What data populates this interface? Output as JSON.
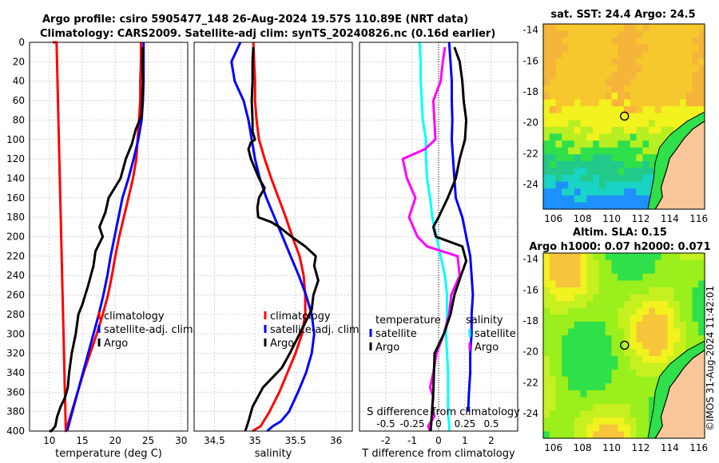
{
  "titles": {
    "line1": "Argo profile: csiro 5905477_148 26-Aug-2024 19.57S 110.89E (NRT data)",
    "line2": "Climatology: CARS2009. Satellite-adj clim: synTS_20240826.nc (0.16d earlier)"
  },
  "watermark": "©IMOS 31-Aug-2024 11:42:01",
  "colors": {
    "climatology": "#ff0000",
    "satellite": "#0000ff",
    "argo": "#000000",
    "salinity_diff": "#ff00ff",
    "sat_salinity_diff": "#00ffff",
    "grid": "#c8c8c8",
    "land": "#fac79a",
    "ocean_blue": "#1e90ff",
    "ocean_cyan": "#19d3c5",
    "ocean_green": "#2fe04a",
    "ocean_yellow": "#f2f21e",
    "ocean_orange": "#f5b43a",
    "sla_bright": "#9aef1c"
  },
  "chart_data": [
    {
      "id": "temperature",
      "type": "line",
      "xlabel": "temperature (deg C)",
      "ylabel": "",
      "xlim": [
        7,
        31
      ],
      "ylim": [
        400,
        0
      ],
      "xticks": [
        10,
        15,
        20,
        25,
        30
      ],
      "xticklabels": [
        "10",
        "15",
        "20",
        "25",
        "30"
      ],
      "yticks": [
        0,
        20,
        40,
        60,
        80,
        100,
        120,
        140,
        160,
        180,
        200,
        220,
        240,
        260,
        280,
        300,
        320,
        340,
        360,
        380,
        400
      ],
      "legend": [
        "climatology",
        "satellite-adj. clim",
        "Argo"
      ],
      "legend_position": "bottom-right",
      "series": [
        {
          "name": "climatology",
          "color": "climatology",
          "x": [
            23.9,
            23.9,
            23.8,
            23.8,
            23.6,
            23.4,
            23.2,
            22.7,
            22.0,
            21.3,
            20.6,
            20.0,
            19.5,
            18.9,
            18.1,
            17.2,
            16.2,
            15.2,
            14.3,
            13.4,
            12.5,
            11.7,
            11.1,
            10.5
          ],
          "y": [
            0,
            20,
            40,
            60,
            80,
            100,
            120,
            140,
            160,
            180,
            200,
            220,
            240,
            260,
            280,
            300,
            320,
            340,
            360,
            380,
            400,
            0,
            0,
            0
          ]
        },
        {
          "name": "satellite-adj. clim",
          "color": "satellite",
          "x": [
            24.3,
            24.3,
            24.3,
            24.2,
            24.0,
            23.5,
            22.8,
            22.0,
            21.1,
            20.5,
            19.9,
            19.3,
            18.8,
            18.2,
            17.5,
            16.7,
            15.9,
            15.1,
            14.3,
            13.5,
            12.7
          ],
          "y": [
            0,
            20,
            40,
            60,
            80,
            100,
            120,
            140,
            160,
            180,
            200,
            220,
            240,
            260,
            280,
            300,
            320,
            340,
            360,
            380,
            400
          ]
        },
        {
          "name": "Argo",
          "color": "argo",
          "x": [
            24.2,
            24.1,
            24.2,
            24.1,
            24.0,
            23.1,
            22.5,
            21.6,
            20.8,
            19.0,
            18.5,
            17.6,
            18.1,
            17.0,
            16.7,
            15.9,
            15.0,
            14.4,
            14.0,
            13.4,
            13.0,
            12.8,
            12.4,
            11.7,
            11.2,
            10.9,
            10.3,
            10.0
          ],
          "y": [
            5,
            20,
            40,
            60,
            75,
            90,
            105,
            120,
            140,
            160,
            175,
            190,
            200,
            215,
            230,
            250,
            270,
            280,
            300,
            320,
            340,
            355,
            365,
            375,
            385,
            395,
            400,
            400
          ]
        }
      ]
    },
    {
      "id": "salinity",
      "type": "line",
      "xlabel": "salinity",
      "ylabel": "",
      "xlim": [
        34.25,
        36.2
      ],
      "ylim": [
        400,
        0
      ],
      "xticks": [
        34.5,
        35,
        35.5,
        36
      ],
      "xticklabels": [
        "34.5",
        "35",
        "35.5",
        "36"
      ],
      "legend": [
        "climatology",
        "satellite-adj. clim",
        "Argo"
      ],
      "legend_position": "bottom-right",
      "series": [
        {
          "name": "climatology",
          "color": "climatology",
          "x": [
            34.98,
            34.99,
            35.0,
            35.0,
            35.02,
            35.05,
            35.12,
            35.2,
            35.29,
            35.38,
            35.46,
            35.55,
            35.6,
            35.62,
            35.62,
            35.58,
            35.5,
            35.4,
            35.3,
            35.18,
            35.07,
            34.97
          ],
          "y": [
            0,
            20,
            40,
            60,
            80,
            100,
            120,
            140,
            160,
            180,
            200,
            220,
            240,
            260,
            280,
            300,
            320,
            340,
            360,
            380,
            395,
            400
          ]
        },
        {
          "name": "satellite-adj. clim",
          "color": "satellite",
          "x": [
            34.82,
            34.71,
            34.75,
            34.86,
            34.92,
            34.96,
            35.0,
            35.06,
            35.14,
            35.24,
            35.34,
            35.44,
            35.54,
            35.63,
            35.7,
            35.73,
            35.7,
            35.63,
            35.53,
            35.42,
            35.32,
            35.22,
            35.15
          ],
          "y": [
            0,
            20,
            40,
            60,
            80,
            100,
            120,
            140,
            160,
            180,
            200,
            220,
            240,
            260,
            280,
            300,
            320,
            340,
            360,
            380,
            390,
            395,
            400
          ]
        },
        {
          "name": "Argo",
          "color": "argo",
          "x": [
            34.98,
            34.97,
            34.97,
            34.96,
            34.97,
            34.97,
            35.0,
            34.95,
            34.92,
            34.95,
            35.0,
            35.05,
            35.12,
            35.05,
            35.03,
            35.04,
            35.2,
            35.3,
            35.45,
            35.62,
            35.75,
            35.73,
            35.78,
            35.72,
            35.7,
            35.55,
            35.43,
            35.33,
            35.1,
            34.97,
            34.92,
            34.88
          ],
          "y": [
            5,
            20,
            40,
            60,
            80,
            92,
            100,
            103,
            110,
            120,
            130,
            140,
            150,
            160,
            170,
            180,
            185,
            190,
            200,
            210,
            220,
            230,
            245,
            260,
            275,
            300,
            320,
            335,
            355,
            375,
            390,
            400
          ]
        }
      ]
    },
    {
      "id": "difference",
      "type": "line",
      "xlabel": "T difference from climatology",
      "xlabel_secondary": "S difference from climatology",
      "xlim": [
        -3,
        3
      ],
      "ylim": [
        400,
        0
      ],
      "xticks": [
        -2,
        -1,
        0,
        1,
        2
      ],
      "xticklabels": [
        "-2",
        "-1",
        "0",
        "1",
        "2"
      ],
      "sticks": [
        -0.5,
        -0.25,
        0,
        0.25,
        0.5
      ],
      "sticklabels": [
        "-0.5",
        "-0.25",
        "0",
        "0.25",
        "0.5"
      ],
      "s_scale": 4,
      "legend_temperature_header": "temperature",
      "legend_salinity_header": "salinity",
      "legend_temperature": [
        "satellite",
        "Argo"
      ],
      "legend_salinity": [
        "satellite",
        "Argo"
      ],
      "series": [
        {
          "name": "S satellite",
          "color": "sat_salinity_diff",
          "scale": "salinity",
          "x": [
            -0.18,
            -0.17,
            -0.17,
            -0.16,
            -0.15,
            -0.12,
            -0.12,
            -0.11,
            -0.08,
            -0.06,
            -0.02,
            0.02,
            0.06,
            0.08,
            0.08,
            0.07,
            0.08,
            0.09,
            0.09,
            0.09,
            0.1,
            0.1
          ],
          "y": [
            0,
            20,
            40,
            60,
            80,
            100,
            120,
            140,
            160,
            180,
            200,
            220,
            240,
            260,
            280,
            300,
            320,
            340,
            360,
            380,
            395,
            400
          ]
        },
        {
          "name": "S Argo",
          "color": "salinity_diff",
          "scale": "salinity",
          "x": [
            0.06,
            0.04,
            0.02,
            -0.05,
            -0.04,
            -0.03,
            -0.13,
            -0.34,
            -0.3,
            -0.22,
            -0.28,
            -0.2,
            -0.11,
            0.18,
            0.2,
            0.12,
            0.1,
            0.05,
            -0.02,
            -0.05,
            -0.08,
            -0.05,
            -0.06,
            -0.04,
            -0.1,
            -0.08
          ],
          "y": [
            5,
            20,
            40,
            60,
            80,
            100,
            110,
            120,
            140,
            160,
            180,
            200,
            210,
            220,
            240,
            260,
            280,
            300,
            320,
            340,
            355,
            365,
            375,
            385,
            395,
            400
          ]
        },
        {
          "name": "T satellite",
          "color": "satellite",
          "scale": "temperature",
          "x": [
            0.4,
            0.45,
            0.5,
            0.5,
            0.52,
            0.5,
            0.55,
            0.6,
            0.65,
            0.9,
            1.05,
            1.2,
            1.25,
            1.3,
            1.25,
            1.25,
            1.2,
            1.2,
            1.15,
            1.12
          ],
          "y": [
            0,
            20,
            40,
            60,
            80,
            100,
            120,
            140,
            160,
            180,
            200,
            220,
            240,
            260,
            280,
            300,
            320,
            340,
            360,
            380
          ]
        },
        {
          "name": "T Argo",
          "color": "argo",
          "scale": "temperature",
          "x": [
            0.6,
            0.8,
            0.9,
            0.95,
            1.05,
            1.0,
            0.8,
            0.65,
            0.35,
            0.0,
            -0.2,
            -0.1,
            0.9,
            1.05,
            0.85,
            0.6,
            0.45,
            0.2,
            -0.15,
            -0.2,
            -0.3
          ],
          "y": [
            5,
            20,
            40,
            60,
            80,
            100,
            120,
            140,
            160,
            180,
            190,
            200,
            210,
            225,
            240,
            260,
            280,
            300,
            320,
            360,
            400
          ]
        }
      ]
    },
    {
      "id": "sst_map",
      "type": "heatmap",
      "title": "sat. SST: 24.4 Argo: 24.5",
      "xlim": [
        105.3,
        116.4
      ],
      "ylim": [
        -25.6,
        -13.6
      ],
      "xticks": [
        106,
        108,
        110,
        112,
        114,
        116
      ],
      "xticklabels": [
        "106",
        "108",
        "110",
        "112",
        "114",
        "116"
      ],
      "yticks": [
        -14,
        -16,
        -18,
        -20,
        -22,
        -24
      ],
      "yticklabels": [
        "-14",
        "-16",
        "-18",
        "-20",
        "-22",
        "-24"
      ],
      "marker": {
        "lon": 110.89,
        "lat": -19.57
      }
    },
    {
      "id": "sla_map",
      "type": "heatmap",
      "title": "Altim. SLA: 0.15",
      "subtitle": "Argo h1000: 0.07 h2000: 0.071",
      "xlim": [
        105.3,
        116.4
      ],
      "ylim": [
        -25.6,
        -13.6
      ],
      "xticks": [
        106,
        108,
        110,
        112,
        114,
        116
      ],
      "xticklabels": [
        "106",
        "108",
        "110",
        "112",
        "114",
        "116"
      ],
      "yticks": [
        -14,
        -16,
        -18,
        -20,
        -22,
        -24
      ],
      "yticklabels": [
        "-14",
        "-16",
        "-18",
        "-20",
        "-22",
        "-24"
      ],
      "marker": {
        "lon": 110.89,
        "lat": -19.57
      }
    }
  ]
}
